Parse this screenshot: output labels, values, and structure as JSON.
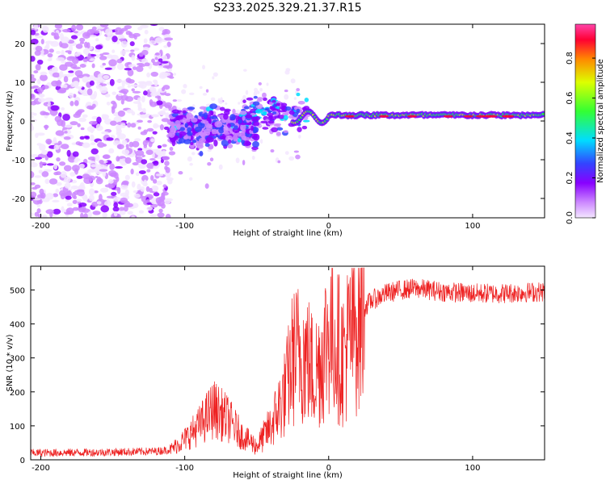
{
  "chart_data": [
    {
      "type": "heatmap",
      "title": "S233.2025.329.21.37.R15",
      "xlabel": "Height of straight line (km)",
      "ylabel": "Frequency (Hz)",
      "xlim": [
        -207,
        150
      ],
      "ylim": [
        -25,
        25
      ],
      "xticks": [
        -200,
        -100,
        0,
        100
      ],
      "xtick_labels": [
        "-200",
        "-100",
        "0",
        "100"
      ],
      "yticks": [
        -20,
        -10,
        0,
        10,
        20
      ],
      "ytick_labels": [
        "-20",
        "-10",
        "0",
        "10",
        "20"
      ],
      "colorbar": {
        "label": "Normalized spectral amplitude",
        "range": [
          0,
          0.97
        ],
        "ticks": [
          0.0,
          0.2,
          0.4,
          0.6,
          0.8
        ],
        "tick_labels": [
          "0.0",
          "0.2",
          "0.4",
          "0.6",
          "0.8"
        ],
        "colors": [
          "#f3e6ff",
          "#cc88ff",
          "#8800ff",
          "#3344ff",
          "#00ddff",
          "#33ff33",
          "#ddff00",
          "#ff8800",
          "#ff0033",
          "#ff44aa"
        ]
      },
      "features": [
        {
          "label": "noise region",
          "x_range": [
            -207,
            -110
          ],
          "y_range": [
            -25,
            25
          ],
          "amplitude": 0.1
        },
        {
          "label": "scattered signal",
          "x_range": [
            -110,
            -55
          ],
          "y_center": -2,
          "y_spread": 6,
          "amplitude": 0.2
        },
        {
          "label": "carrier line",
          "x_range": [
            -20,
            150
          ],
          "y_center": 1.5,
          "amplitude": 0.6
        }
      ]
    },
    {
      "type": "line",
      "xlabel": "Height of straight line (km)",
      "ylabel": "SNR (10 * v/v)",
      "xlim": [
        -207,
        150
      ],
      "ylim": [
        0,
        570
      ],
      "xticks": [
        -200,
        -100,
        0,
        100
      ],
      "xtick_labels": [
        "-200",
        "-100",
        "0",
        "100"
      ],
      "yticks": [
        0,
        100,
        200,
        300,
        400,
        500
      ],
      "ytick_labels": [
        "0",
        "100",
        "200",
        "300",
        "400",
        "500"
      ],
      "color": "#ee2222",
      "series": [
        {
          "name": "SNR",
          "x": [
            -207,
            -160,
            -120,
            -110,
            -100,
            -90,
            -80,
            -70,
            -60,
            -50,
            -40,
            -30,
            -25,
            -20,
            -15,
            -10,
            -5,
            0,
            5,
            10,
            15,
            20,
            25,
            30,
            40,
            50,
            60,
            80,
            100,
            120,
            150
          ],
          "values": [
            20,
            22,
            25,
            30,
            60,
            100,
            150,
            120,
            70,
            40,
            100,
            200,
            300,
            320,
            300,
            250,
            300,
            380,
            350,
            300,
            370,
            420,
            450,
            470,
            490,
            500,
            505,
            495,
            490,
            490,
            495
          ]
        }
      ]
    }
  ]
}
